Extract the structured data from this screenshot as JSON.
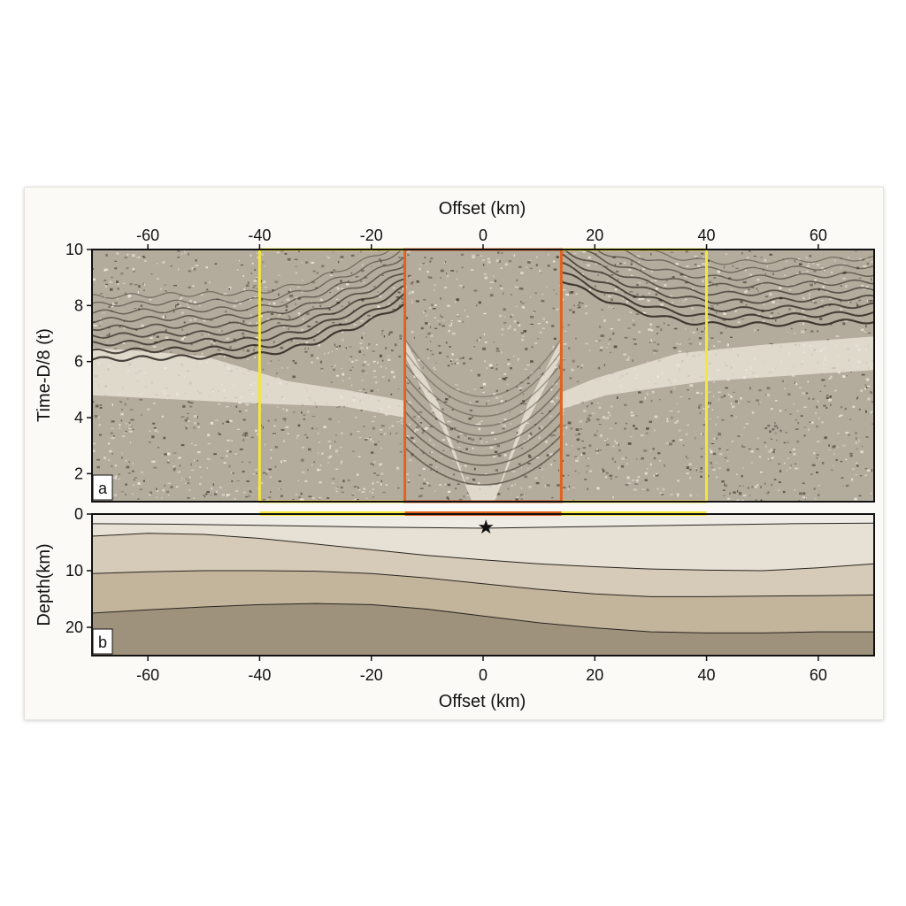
{
  "chart_data": [
    {
      "type": "heatmap",
      "panel_label": "a",
      "xlabel": "Offset (km)",
      "ylabel": "Time-D/8 (t)",
      "xlim": [
        -70,
        70
      ],
      "ylim": [
        1,
        10
      ],
      "x_ticks": [
        -60,
        -40,
        -20,
        0,
        20,
        40,
        60
      ],
      "y_ticks": [
        2,
        4,
        6,
        8,
        10
      ],
      "boxes": [
        {
          "name": "yellow",
          "color": "#f5e63a",
          "x_range": [
            -40,
            40
          ]
        },
        {
          "name": "orange",
          "color": "#e2621e",
          "x_range": [
            -14,
            14
          ]
        }
      ],
      "colors": {
        "base": "#b3ab9c",
        "event": "#2a241d",
        "quiet": "#ece6da"
      }
    },
    {
      "type": "area",
      "panel_label": "b",
      "xlabel": "Offset (km)",
      "ylabel": "Depth(km)",
      "xlim": [
        -70,
        70
      ],
      "ylim": [
        0,
        25
      ],
      "x_ticks": [
        -60,
        -40,
        -20,
        0,
        20,
        40,
        60
      ],
      "y_ticks": [
        0,
        10,
        20
      ],
      "source_marker": {
        "x": 0.5,
        "depth": 2.2,
        "symbol": "★"
      },
      "interfaces": [
        {
          "x": [
            -70,
            -55,
            -40,
            -20,
            0,
            20,
            40,
            55,
            70
          ],
          "depth": [
            1.7,
            1.8,
            2.0,
            2.3,
            2.5,
            2.2,
            1.9,
            1.7,
            1.6
          ]
        },
        {
          "x": [
            -70,
            -60,
            -50,
            -40,
            -30,
            -20,
            -10,
            0,
            10,
            20,
            30,
            40,
            50,
            60,
            70
          ],
          "depth": [
            3.9,
            3.4,
            3.6,
            4.3,
            5.3,
            6.3,
            7.3,
            8.1,
            8.8,
            9.3,
            9.7,
            9.9,
            10.0,
            9.5,
            8.8
          ]
        },
        {
          "x": [
            -70,
            -60,
            -50,
            -40,
            -30,
            -20,
            -10,
            0,
            10,
            20,
            30,
            40,
            50,
            60,
            70
          ],
          "depth": [
            10.5,
            10.2,
            10.0,
            10.0,
            10.1,
            10.5,
            11.3,
            12.3,
            13.3,
            14.1,
            14.6,
            14.6,
            14.5,
            14.4,
            14.3
          ]
        },
        {
          "x": [
            -70,
            -60,
            -50,
            -40,
            -30,
            -20,
            -10,
            0,
            10,
            20,
            30,
            40,
            50,
            60,
            70
          ],
          "depth": [
            17.5,
            16.9,
            16.4,
            16.0,
            15.8,
            16.0,
            16.8,
            18.0,
            19.2,
            20.1,
            20.8,
            21.0,
            21.0,
            20.8,
            20.8
          ]
        }
      ],
      "layer_colors": [
        "#efece6",
        "#e6e0d5",
        "#d6cbb8",
        "#c3b59c",
        "#9f927c"
      ]
    }
  ]
}
